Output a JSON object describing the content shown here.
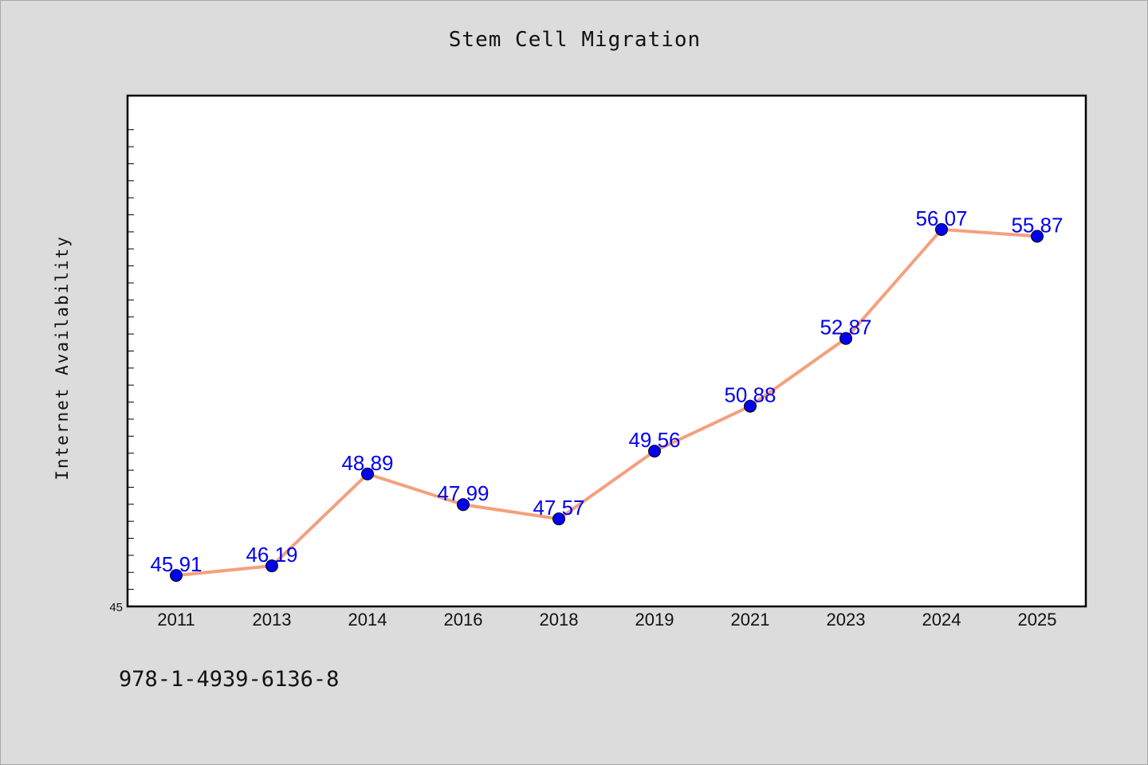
{
  "chart_data": {
    "type": "line",
    "title": "Stem Cell Migration",
    "xlabel": "",
    "ylabel": "Internet Availability",
    "categories": [
      "2011",
      "2013",
      "2014",
      "2016",
      "2018",
      "2019",
      "2021",
      "2023",
      "2024",
      "2025"
    ],
    "series": [
      {
        "values": [
          45.91,
          46.19,
          48.89,
          47.99,
          47.57,
          49.56,
          50.88,
          52.87,
          56.07,
          55.87
        ],
        "line_color": "#f4a07f",
        "marker_color": "#0000ee",
        "label_color": "#0000ee"
      }
    ],
    "ylim": [
      45,
      60
    ],
    "y_tick_label": "45",
    "grid": false,
    "legend": "none"
  },
  "footer": {
    "isbn": "978-1-4939-6136-8"
  }
}
